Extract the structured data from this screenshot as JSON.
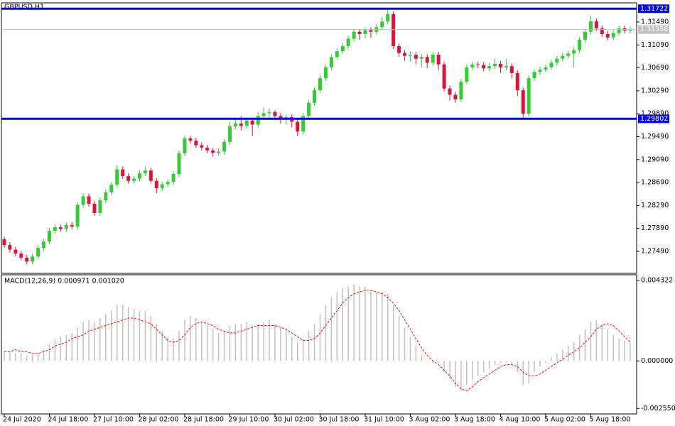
{
  "chart_data": [
    {
      "type": "candlestick",
      "title": "GBPUSD,H1",
      "up_color": "#32cd32",
      "down_color": "#dc143c",
      "open": [
        1.277,
        1.276,
        1.2752,
        1.2745,
        1.2738,
        1.2731,
        1.274,
        1.2755,
        1.2766,
        1.2785,
        1.2791,
        1.2788,
        1.2795,
        1.2792,
        1.283,
        1.2845,
        1.2832,
        1.2816,
        1.2838,
        1.2852,
        1.2865,
        1.2892,
        1.288,
        1.2872,
        1.2876,
        1.2885,
        1.289,
        1.2872,
        1.2859,
        1.2866,
        1.287,
        1.2884,
        1.292,
        1.2946,
        1.2942,
        1.2934,
        1.293,
        1.2925,
        1.2921,
        1.2923,
        1.294,
        1.2967,
        1.2972,
        1.2968,
        1.2977,
        1.297,
        1.2985,
        1.299,
        1.2992,
        1.2985,
        1.298,
        1.2983,
        1.2975,
        1.2958,
        1.2985,
        1.3008,
        1.303,
        1.3051,
        1.307,
        1.3088,
        1.3098,
        1.3107,
        1.312,
        1.3132,
        1.3128,
        1.3135,
        1.3132,
        1.314,
        1.315,
        1.3163,
        1.3107,
        1.3095,
        1.309,
        1.3092,
        1.3085,
        1.3088,
        1.3078,
        1.3092,
        1.3075,
        1.3033,
        1.3022,
        1.3014,
        1.3045,
        1.307,
        1.3075,
        1.3074,
        1.3068,
        1.3072,
        1.3076,
        1.307,
        1.3072,
        1.306,
        1.303,
        1.2989,
        1.3051,
        1.3062,
        1.3066,
        1.307,
        1.3078,
        1.3085,
        1.309,
        1.3094,
        1.31,
        1.3118,
        1.3132,
        1.315,
        1.3138,
        1.3128,
        1.3122,
        1.313,
        1.3138,
        1.3134
      ],
      "high": [
        1.2775,
        1.2765,
        1.2757,
        1.275,
        1.2743,
        1.2745,
        1.276,
        1.2771,
        1.279,
        1.2796,
        1.2796,
        1.28,
        1.28,
        1.2835,
        1.285,
        1.285,
        1.2837,
        1.2843,
        1.2857,
        1.287,
        1.29,
        1.2897,
        1.2885,
        1.2881,
        1.289,
        1.2897,
        1.2895,
        1.2877,
        1.2871,
        1.2875,
        1.2889,
        1.2925,
        1.2951,
        1.2951,
        1.2947,
        1.2939,
        1.2935,
        1.293,
        1.2928,
        1.2945,
        1.2975,
        1.298,
        1.2985,
        1.2982,
        1.2982,
        1.2992,
        1.3,
        1.2998,
        1.2995,
        1.299,
        1.2988,
        1.2988,
        1.298,
        1.299,
        1.3013,
        1.3035,
        1.3056,
        1.3075,
        1.3093,
        1.3103,
        1.3112,
        1.3125,
        1.3137,
        1.3137,
        1.314,
        1.314,
        1.3145,
        1.3158,
        1.3172,
        1.3168,
        1.3112,
        1.31,
        1.3098,
        1.3097,
        1.3093,
        1.3093,
        1.3097,
        1.3097,
        1.308,
        1.3038,
        1.3027,
        1.305,
        1.3075,
        1.308,
        1.308,
        1.3079,
        1.3077,
        1.3085,
        1.3081,
        1.3085,
        1.3077,
        1.3065,
        1.3035,
        1.3056,
        1.3067,
        1.3071,
        1.3075,
        1.3083,
        1.309,
        1.3095,
        1.3099,
        1.3105,
        1.3123,
        1.3137,
        1.316,
        1.3155,
        1.3143,
        1.3133,
        1.3135,
        1.3143,
        1.3143,
        1.3141
      ],
      "low": [
        1.2755,
        1.2747,
        1.274,
        1.2733,
        1.2726,
        1.2726,
        1.2735,
        1.275,
        1.2761,
        1.278,
        1.2783,
        1.2783,
        1.2787,
        1.2787,
        1.2825,
        1.2827,
        1.2811,
        1.2811,
        1.2833,
        1.2847,
        1.286,
        1.2875,
        1.2867,
        1.2867,
        1.2871,
        1.288,
        1.2867,
        1.285,
        1.2854,
        1.2861,
        1.2865,
        1.2879,
        1.2915,
        1.2937,
        1.2929,
        1.2925,
        1.292,
        1.2914,
        1.2916,
        1.2918,
        1.2935,
        1.2962,
        1.296,
        1.2963,
        1.295,
        1.2965,
        1.298,
        1.2982,
        1.2978,
        1.2972,
        1.297,
        1.2965,
        1.295,
        1.2953,
        1.298,
        1.3003,
        1.3025,
        1.3046,
        1.3065,
        1.3083,
        1.3093,
        1.3102,
        1.3115,
        1.3118,
        1.312,
        1.3122,
        1.3127,
        1.3135,
        1.3145,
        1.3102,
        1.3088,
        1.3082,
        1.308,
        1.3075,
        1.307,
        1.3068,
        1.3073,
        1.3065,
        1.3028,
        1.3012,
        1.3008,
        1.3009,
        1.304,
        1.3065,
        1.3068,
        1.3063,
        1.3063,
        1.3067,
        1.306,
        1.3065,
        1.305,
        1.302,
        1.298,
        1.2984,
        1.3046,
        1.3057,
        1.3061,
        1.3065,
        1.3073,
        1.308,
        1.3085,
        1.307,
        1.3095,
        1.3113,
        1.3127,
        1.3133,
        1.3123,
        1.3117,
        1.3117,
        1.3125,
        1.3129,
        1.3129
      ],
      "close": [
        1.276,
        1.2752,
        1.2745,
        1.2738,
        1.2731,
        1.274,
        1.2755,
        1.2766,
        1.2785,
        1.2791,
        1.2788,
        1.2795,
        1.2792,
        1.283,
        1.2845,
        1.2832,
        1.2816,
        1.2838,
        1.2852,
        1.2865,
        1.2892,
        1.288,
        1.2872,
        1.2876,
        1.2885,
        1.289,
        1.2872,
        1.2859,
        1.2866,
        1.287,
        1.2884,
        1.292,
        1.2946,
        1.2942,
        1.2934,
        1.293,
        1.2925,
        1.2921,
        1.2923,
        1.294,
        1.2967,
        1.2972,
        1.2968,
        1.2977,
        1.297,
        1.2985,
        1.299,
        1.2992,
        1.2985,
        1.298,
        1.2983,
        1.2975,
        1.2958,
        1.2985,
        1.3008,
        1.303,
        1.3051,
        1.307,
        1.3088,
        1.3098,
        1.3107,
        1.312,
        1.3132,
        1.3128,
        1.3135,
        1.3132,
        1.314,
        1.315,
        1.3163,
        1.3107,
        1.3095,
        1.309,
        1.3092,
        1.3085,
        1.3088,
        1.3078,
        1.3092,
        1.3075,
        1.3033,
        1.3022,
        1.3014,
        1.3045,
        1.307,
        1.3075,
        1.3074,
        1.3068,
        1.3072,
        1.3076,
        1.307,
        1.3072,
        1.306,
        1.303,
        1.2989,
        1.3051,
        1.3062,
        1.3066,
        1.307,
        1.3078,
        1.3085,
        1.309,
        1.3094,
        1.31,
        1.3118,
        1.3132,
        1.315,
        1.3138,
        1.3128,
        1.3122,
        1.313,
        1.3138,
        1.3134,
        1.3136
      ],
      "ylim": [
        1.27106,
        1.31812
      ],
      "yticks": [
        {
          "value": 1.2749,
          "label": "1.27490"
        },
        {
          "value": 1.2789,
          "label": "1.27890"
        },
        {
          "value": 1.2829,
          "label": "1.28290"
        },
        {
          "value": 1.2869,
          "label": "1.28690"
        },
        {
          "value": 1.2909,
          "label": "1.29090"
        },
        {
          "value": 1.2949,
          "label": "1.29490"
        },
        {
          "value": 1.2989,
          "label": "1.29890"
        },
        {
          "value": 1.3029,
          "label": "1.30290"
        },
        {
          "value": 1.3069,
          "label": "1.30690"
        },
        {
          "value": 1.3109,
          "label": "1.31090"
        },
        {
          "value": 1.3149,
          "label": "1.31490"
        }
      ],
      "hlines": [
        {
          "value": 1.31358,
          "label": "1.31358",
          "color": "#c0c0c0"
        },
        {
          "value": 1.31722,
          "label": "1.31722",
          "color": "#0000ff"
        },
        {
          "value": 1.29802,
          "label": "1.29802",
          "color": "#0000ff"
        }
      ]
    },
    {
      "type": "macd",
      "title": "MACD(12,26,9) 0.000971 0.001020",
      "categories": [
        "24 Jul 2020",
        null,
        null,
        null,
        null,
        null,
        null,
        null,
        "24 Jul 18:00",
        null,
        null,
        null,
        null,
        null,
        null,
        null,
        "27 Jul 10:00",
        null,
        null,
        null,
        null,
        null,
        null,
        null,
        "28 Jul 02:00",
        null,
        null,
        null,
        null,
        null,
        null,
        null,
        "28 Jul 18:00",
        null,
        null,
        null,
        null,
        null,
        null,
        null,
        "29 Jul 10:00",
        null,
        null,
        null,
        null,
        null,
        null,
        null,
        "30 Jul 02:00",
        null,
        null,
        null,
        null,
        null,
        null,
        null,
        "30 Jul 18:00",
        null,
        null,
        null,
        null,
        null,
        null,
        null,
        "31 Jul 10:00",
        null,
        null,
        null,
        null,
        null,
        null,
        null,
        "3 Aug 02:00",
        null,
        null,
        null,
        null,
        null,
        null,
        null,
        "3 Aug 18:00",
        null,
        null,
        null,
        null,
        null,
        null,
        null,
        "4 Aug 10:00",
        null,
        null,
        null,
        null,
        null,
        null,
        null,
        "5 Aug 02:00",
        null,
        null,
        null,
        null,
        null,
        null,
        null,
        "5 Aug 18:00",
        null,
        null,
        null,
        null,
        null,
        null,
        null
      ],
      "histogram": {
        "color": "#c0c0c0",
        "values": [
          0.0005,
          0.0005,
          0.0004,
          0.0004,
          0.0003,
          0.0003,
          0.0004,
          0.0006,
          0.0009,
          0.0012,
          0.0013,
          0.0014,
          0.0015,
          0.0018,
          0.0021,
          0.0022,
          0.0021,
          0.0023,
          0.0025,
          0.0027,
          0.003,
          0.003,
          0.0029,
          0.0028,
          0.0027,
          0.0027,
          0.0024,
          0.002,
          0.0016,
          0.0013,
          0.0012,
          0.0016,
          0.0022,
          0.0024,
          0.0023,
          0.0021,
          0.0019,
          0.0017,
          0.0015,
          0.0016,
          0.0019,
          0.002,
          0.002,
          0.0021,
          0.0019,
          0.002,
          0.0021,
          0.0022,
          0.002,
          0.0018,
          0.0017,
          0.0013,
          0.001,
          0.0012,
          0.0016,
          0.002,
          0.0025,
          0.003,
          0.0034,
          0.0037,
          0.0039,
          0.004,
          0.0041,
          0.004,
          0.004,
          0.0038,
          0.0037,
          0.0037,
          0.0036,
          0.003,
          0.0024,
          0.0018,
          0.0013,
          0.0008,
          0.0003,
          0.0,
          -0.0001,
          -0.0001,
          -0.0006,
          -0.001,
          -0.0014,
          -0.0016,
          -0.0013,
          -0.001,
          -0.0008,
          -0.0006,
          -0.0004,
          -0.0002,
          -0.0001,
          -0.0001,
          -0.0002,
          -0.0006,
          -0.0013,
          -0.0012,
          -0.0006,
          -0.0003,
          -0.0001,
          0.0002,
          0.0004,
          0.0006,
          0.0008,
          0.001,
          0.0014,
          0.0017,
          0.0021,
          0.0022,
          0.002,
          0.0017,
          0.0014,
          0.0012,
          0.0011,
          0.000971
        ]
      },
      "signal": {
        "color": "#ff0000",
        "values": [
          0.0005,
          0.0005,
          0.0006,
          0.0005,
          0.0005,
          0.0004,
          0.0004,
          0.0005,
          0.0006,
          0.0008,
          0.0009,
          0.001,
          0.0012,
          0.0013,
          0.0014,
          0.0016,
          0.0017,
          0.0018,
          0.0019,
          0.002,
          0.0021,
          0.0022,
          0.0023,
          0.0023,
          0.0022,
          0.0021,
          0.002,
          0.0017,
          0.0014,
          0.0011,
          0.001,
          0.0011,
          0.0014,
          0.0018,
          0.002,
          0.0021,
          0.002,
          0.0019,
          0.0017,
          0.0016,
          0.0015,
          0.0015,
          0.0016,
          0.0017,
          0.0018,
          0.0019,
          0.0019,
          0.0019,
          0.0019,
          0.0018,
          0.0017,
          0.0015,
          0.0013,
          0.0011,
          0.0011,
          0.0012,
          0.0015,
          0.0019,
          0.0023,
          0.0027,
          0.0031,
          0.0034,
          0.0036,
          0.0037,
          0.0038,
          0.0038,
          0.0037,
          0.0036,
          0.0034,
          0.0031,
          0.0027,
          0.0022,
          0.0017,
          0.0012,
          0.0007,
          0.0003,
          0.0,
          -0.0002,
          -0.0005,
          -0.0008,
          -0.0012,
          -0.0015,
          -0.0016,
          -0.0014,
          -0.0011,
          -0.0009,
          -0.0007,
          -0.0005,
          -0.0003,
          -0.0002,
          -0.0002,
          -0.0003,
          -0.0006,
          -0.0008,
          -0.0008,
          -0.0007,
          -0.0005,
          -0.0003,
          -0.0001,
          0.0001,
          0.0003,
          0.0005,
          0.0007,
          0.001,
          0.0013,
          0.0017,
          0.0019,
          0.002,
          0.0019,
          0.0016,
          0.0013,
          0.00102
        ]
      },
      "ylim": [
        -0.002843,
        0.004587
      ],
      "yticks": [
        {
          "value": 0.004322,
          "label": "0.004322"
        },
        {
          "value": 0,
          "label": "0.000000"
        },
        {
          "value": -0.00255,
          "label": "-0.002550"
        }
      ]
    }
  ]
}
